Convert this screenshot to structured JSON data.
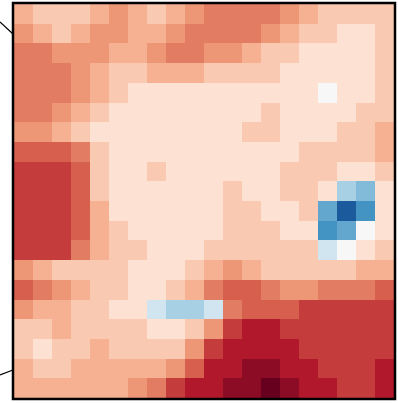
{
  "chart_data": {
    "type": "heatmap",
    "tick_labels": false,
    "zlim": [
      -1,
      1
    ],
    "cells": [
      [
        0.3,
        0.2,
        0.2,
        0.2,
        0.3,
        0.4,
        0.3,
        0.2,
        0.3,
        0.4,
        0.5,
        0.5,
        0.5,
        0.5,
        0.4,
        0.3,
        0.2,
        0.2,
        0.2,
        0.2
      ],
      [
        0.4,
        0.3,
        0.2,
        0.3,
        0.4,
        0.4,
        0.3,
        0.3,
        0.4,
        0.5,
        0.5,
        0.5,
        0.5,
        0.4,
        0.3,
        0.2,
        0.2,
        0.1,
        0.1,
        0.2
      ],
      [
        0.5,
        0.5,
        0.4,
        0.4,
        0.4,
        0.3,
        0.3,
        0.4,
        0.5,
        0.5,
        0.4,
        0.4,
        0.3,
        0.2,
        0.2,
        0.1,
        0.1,
        0.1,
        0.1,
        0.2
      ],
      [
        0.5,
        0.5,
        0.5,
        0.4,
        0.3,
        0.2,
        0.2,
        0.3,
        0.3,
        0.3,
        0.2,
        0.2,
        0.2,
        0.2,
        0.1,
        0.1,
        0.1,
        0.1,
        0.1,
        0.2
      ],
      [
        0.5,
        0.5,
        0.5,
        0.4,
        0.3,
        0.2,
        0.1,
        0.1,
        0.1,
        0.1,
        0.1,
        0.1,
        0.1,
        0.1,
        0.1,
        0.1,
        0.0,
        0.1,
        0.1,
        0.2
      ],
      [
        0.5,
        0.5,
        0.4,
        0.3,
        0.2,
        0.1,
        0.1,
        0.1,
        0.1,
        0.1,
        0.1,
        0.1,
        0.1,
        0.2,
        0.1,
        0.1,
        0.1,
        0.1,
        0.2,
        0.2
      ],
      [
        0.4,
        0.4,
        0.3,
        0.2,
        0.1,
        0.1,
        0.1,
        0.1,
        0.1,
        0.1,
        0.1,
        0.1,
        0.2,
        0.2,
        0.1,
        0.1,
        0.1,
        0.2,
        0.2,
        0.3
      ],
      [
        0.6,
        0.6,
        0.6,
        0.5,
        0.2,
        0.1,
        0.1,
        0.1,
        0.1,
        0.1,
        0.1,
        0.1,
        0.1,
        0.1,
        0.1,
        0.2,
        0.2,
        0.2,
        0.2,
        0.3
      ],
      [
        0.7,
        0.7,
        0.7,
        0.6,
        0.2,
        0.1,
        0.1,
        0.2,
        0.1,
        0.1,
        0.1,
        0.1,
        0.1,
        0.1,
        0.2,
        0.2,
        0.2,
        0.1,
        0.1,
        0.2
      ],
      [
        0.7,
        0.7,
        0.7,
        0.6,
        0.2,
        0.1,
        0.1,
        0.1,
        0.1,
        0.1,
        0.1,
        0.2,
        0.1,
        0.1,
        0.2,
        0.2,
        0.1,
        -0.2,
        -0.3,
        0.1
      ],
      [
        0.7,
        0.7,
        0.7,
        0.6,
        0.3,
        0.1,
        0.1,
        0.1,
        0.1,
        0.1,
        0.1,
        0.2,
        0.2,
        0.1,
        0.1,
        0.2,
        -0.4,
        -0.8,
        -0.5,
        0.1
      ],
      [
        0.7,
        0.7,
        0.7,
        0.6,
        0.3,
        0.2,
        0.1,
        0.1,
        0.1,
        0.1,
        0.1,
        0.2,
        0.2,
        0.2,
        0.1,
        0.1,
        -0.5,
        -0.4,
        0.0,
        0.1
      ],
      [
        0.7,
        0.7,
        0.7,
        0.5,
        0.3,
        0.2,
        0.2,
        0.1,
        0.1,
        0.1,
        0.2,
        0.2,
        0.2,
        0.2,
        0.2,
        0.2,
        -0.1,
        0.0,
        0.1,
        0.2
      ],
      [
        0.4,
        0.3,
        0.2,
        0.2,
        0.2,
        0.2,
        0.1,
        0.1,
        0.1,
        0.2,
        0.3,
        0.4,
        0.3,
        0.2,
        0.2,
        0.2,
        0.2,
        0.2,
        0.3,
        0.3
      ],
      [
        0.6,
        0.5,
        0.4,
        0.3,
        0.2,
        0.2,
        0.1,
        0.1,
        0.2,
        0.3,
        0.5,
        0.6,
        0.6,
        0.5,
        0.4,
        0.4,
        0.5,
        0.5,
        0.5,
        0.6
      ],
      [
        0.4,
        0.3,
        0.3,
        0.2,
        0.2,
        0.1,
        0.1,
        -0.1,
        -0.2,
        -0.2,
        -0.1,
        0.5,
        0.6,
        0.6,
        0.6,
        0.7,
        0.7,
        0.7,
        0.7,
        0.7
      ],
      [
        0.2,
        0.2,
        0.3,
        0.2,
        0.2,
        0.2,
        0.2,
        0.1,
        0.1,
        0.2,
        0.4,
        0.7,
        0.8,
        0.8,
        0.7,
        0.7,
        0.7,
        0.7,
        0.7,
        0.7
      ],
      [
        0.2,
        0.1,
        0.2,
        0.2,
        0.3,
        0.2,
        0.2,
        0.2,
        0.2,
        0.4,
        0.7,
        0.8,
        0.8,
        0.8,
        0.8,
        0.7,
        0.7,
        0.7,
        0.7,
        0.7
      ],
      [
        0.3,
        0.2,
        0.2,
        0.3,
        0.3,
        0.3,
        0.3,
        0.3,
        0.4,
        0.6,
        0.8,
        0.8,
        0.9,
        0.9,
        0.8,
        0.8,
        0.7,
        0.7,
        0.7,
        0.8
      ],
      [
        0.3,
        0.3,
        0.3,
        0.3,
        0.3,
        0.3,
        0.4,
        0.5,
        0.7,
        0.8,
        0.8,
        0.9,
        0.9,
        1.0,
        0.9,
        0.8,
        0.8,
        0.7,
        0.7,
        0.8
      ]
    ]
  }
}
